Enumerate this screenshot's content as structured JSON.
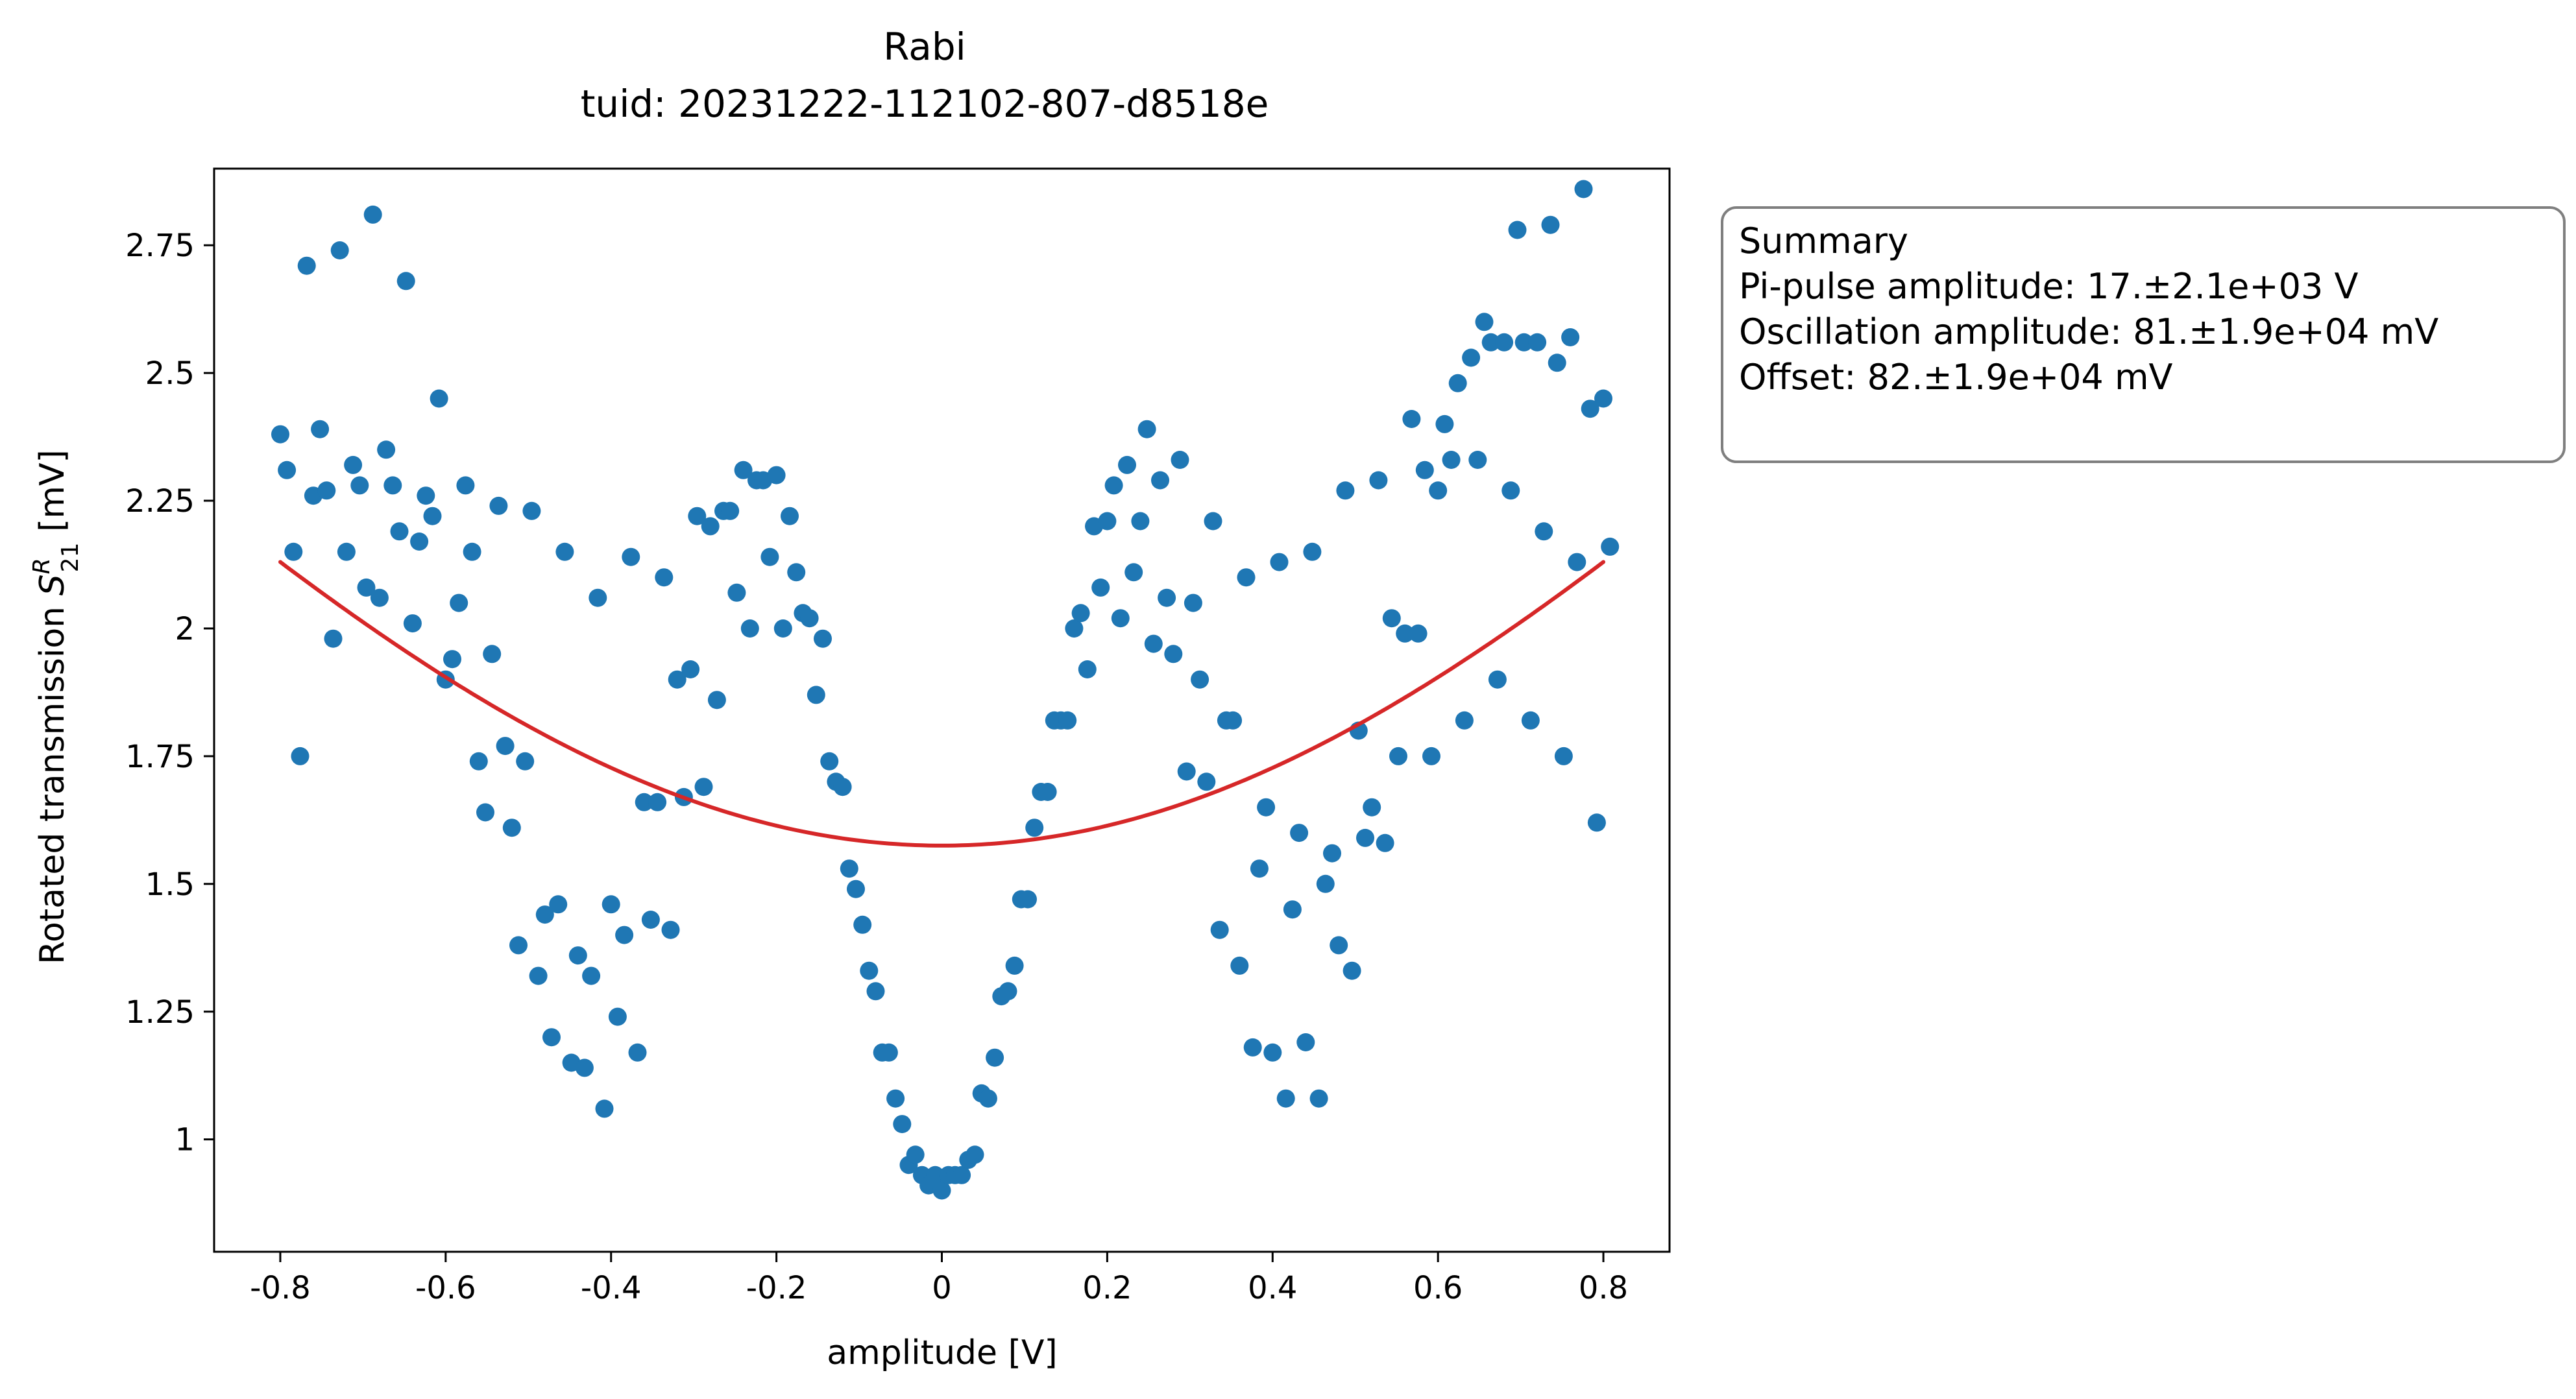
{
  "chart_data": {
    "type": "scatter",
    "title": "Rabi",
    "subtitle": "tuid: 20231222-112102-807-d8518e",
    "xlabel": "amplitude [V]",
    "ylabel_main": "Rotated transmission ",
    "ylabel_symbol": "S",
    "ylabel_sup": "R",
    "ylabel_sub": "21",
    "ylabel_unit": " [mV]",
    "xlim": [
      -0.88,
      0.88
    ],
    "ylim": [
      0.78,
      2.9
    ],
    "x_ticks": [
      -0.8,
      -0.6,
      -0.4,
      -0.2,
      0,
      0.2,
      0.4,
      0.6,
      0.8
    ],
    "x_tick_labels": [
      "-0.8",
      "-0.6",
      "-0.4",
      "-0.2",
      "0",
      "0.2",
      "0.4",
      "0.6",
      "0.8"
    ],
    "y_ticks": [
      1,
      1.25,
      1.5,
      1.75,
      2,
      2.25,
      2.5,
      2.75
    ],
    "y_tick_labels": [
      "1",
      "1.25",
      "1.5",
      "1.75",
      "2",
      "2.25",
      "2.5",
      "2.75"
    ],
    "grid": false,
    "colors": {
      "points": "#1f77b4",
      "fit": "#d62728",
      "box_edge": "#7f7f7f"
    },
    "series": [
      {
        "type": "scatter",
        "points": [
          [
            -0.8,
            2.38
          ],
          [
            -0.792,
            2.31
          ],
          [
            -0.784,
            2.15
          ],
          [
            -0.776,
            1.75
          ],
          [
            -0.768,
            2.71
          ],
          [
            -0.76,
            2.26
          ],
          [
            -0.752,
            2.39
          ],
          [
            -0.744,
            2.27
          ],
          [
            -0.736,
            1.98
          ],
          [
            -0.728,
            2.74
          ],
          [
            -0.72,
            2.15
          ],
          [
            -0.712,
            2.32
          ],
          [
            -0.704,
            2.28
          ],
          [
            -0.696,
            2.08
          ],
          [
            -0.688,
            2.81
          ],
          [
            -0.68,
            2.06
          ],
          [
            -0.672,
            2.35
          ],
          [
            -0.664,
            2.28
          ],
          [
            -0.656,
            2.19
          ],
          [
            -0.648,
            2.68
          ],
          [
            -0.64,
            2.01
          ],
          [
            -0.632,
            2.17
          ],
          [
            -0.624,
            2.26
          ],
          [
            -0.616,
            2.22
          ],
          [
            -0.608,
            2.45
          ],
          [
            -0.6,
            1.9
          ],
          [
            -0.592,
            1.94
          ],
          [
            -0.584,
            2.05
          ],
          [
            -0.576,
            2.28
          ],
          [
            -0.568,
            2.15
          ],
          [
            -0.56,
            1.74
          ],
          [
            -0.552,
            1.64
          ],
          [
            -0.544,
            1.95
          ],
          [
            -0.536,
            2.24
          ],
          [
            -0.528,
            1.77
          ],
          [
            -0.52,
            1.61
          ],
          [
            -0.512,
            1.38
          ],
          [
            -0.504,
            1.74
          ],
          [
            -0.496,
            2.23
          ],
          [
            -0.488,
            1.32
          ],
          [
            -0.48,
            1.44
          ],
          [
            -0.472,
            1.2
          ],
          [
            -0.464,
            1.46
          ],
          [
            -0.456,
            2.15
          ],
          [
            -0.448,
            1.15
          ],
          [
            -0.44,
            1.36
          ],
          [
            -0.432,
            1.14
          ],
          [
            -0.424,
            1.32
          ],
          [
            -0.416,
            2.06
          ],
          [
            -0.408,
            1.06
          ],
          [
            -0.4,
            1.46
          ],
          [
            -0.392,
            1.24
          ],
          [
            -0.384,
            1.4
          ],
          [
            -0.376,
            2.14
          ],
          [
            -0.368,
            1.17
          ],
          [
            -0.36,
            1.66
          ],
          [
            -0.352,
            1.43
          ],
          [
            -0.344,
            1.66
          ],
          [
            -0.336,
            2.1
          ],
          [
            -0.328,
            1.41
          ],
          [
            -0.32,
            1.9
          ],
          [
            -0.312,
            1.67
          ],
          [
            -0.304,
            1.92
          ],
          [
            -0.296,
            2.22
          ],
          [
            -0.288,
            1.69
          ],
          [
            -0.28,
            2.2
          ],
          [
            -0.272,
            1.86
          ],
          [
            -0.264,
            2.23
          ],
          [
            -0.256,
            2.23
          ],
          [
            -0.248,
            2.07
          ],
          [
            -0.24,
            2.31
          ],
          [
            -0.232,
            2.0
          ],
          [
            -0.224,
            2.29
          ],
          [
            -0.216,
            2.29
          ],
          [
            -0.208,
            2.14
          ],
          [
            -0.2,
            2.3
          ],
          [
            -0.192,
            2.0
          ],
          [
            -0.184,
            2.22
          ],
          [
            -0.176,
            2.11
          ],
          [
            -0.168,
            2.03
          ],
          [
            -0.16,
            2.02
          ],
          [
            -0.152,
            1.87
          ],
          [
            -0.144,
            1.98
          ],
          [
            -0.136,
            1.74
          ],
          [
            -0.128,
            1.7
          ],
          [
            -0.12,
            1.69
          ],
          [
            -0.112,
            1.53
          ],
          [
            -0.104,
            1.49
          ],
          [
            -0.096,
            1.42
          ],
          [
            -0.088,
            1.33
          ],
          [
            -0.08,
            1.29
          ],
          [
            -0.072,
            1.17
          ],
          [
            -0.064,
            1.17
          ],
          [
            -0.056,
            1.08
          ],
          [
            -0.048,
            1.03
          ],
          [
            -0.04,
            0.95
          ],
          [
            -0.032,
            0.97
          ],
          [
            -0.024,
            0.93
          ],
          [
            -0.016,
            0.91
          ],
          [
            -0.008,
            0.93
          ],
          [
            0.0,
            0.9
          ],
          [
            0.008,
            0.93
          ],
          [
            0.016,
            0.93
          ],
          [
            0.024,
            0.93
          ],
          [
            0.032,
            0.96
          ],
          [
            0.04,
            0.97
          ],
          [
            0.048,
            1.09
          ],
          [
            0.056,
            1.08
          ],
          [
            0.064,
            1.16
          ],
          [
            0.072,
            1.28
          ],
          [
            0.08,
            1.29
          ],
          [
            0.088,
            1.34
          ],
          [
            0.096,
            1.47
          ],
          [
            0.104,
            1.47
          ],
          [
            0.112,
            1.61
          ],
          [
            0.12,
            1.68
          ],
          [
            0.128,
            1.68
          ],
          [
            0.136,
            1.82
          ],
          [
            0.144,
            1.82
          ],
          [
            0.152,
            1.82
          ],
          [
            0.16,
            2.0
          ],
          [
            0.168,
            2.03
          ],
          [
            0.176,
            1.92
          ],
          [
            0.184,
            2.2
          ],
          [
            0.192,
            2.08
          ],
          [
            0.2,
            2.21
          ],
          [
            0.208,
            2.28
          ],
          [
            0.216,
            2.02
          ],
          [
            0.224,
            2.32
          ],
          [
            0.232,
            2.11
          ],
          [
            0.24,
            2.21
          ],
          [
            0.248,
            2.39
          ],
          [
            0.256,
            1.97
          ],
          [
            0.264,
            2.29
          ],
          [
            0.272,
            2.06
          ],
          [
            0.28,
            1.95
          ],
          [
            0.288,
            2.33
          ],
          [
            0.296,
            1.72
          ],
          [
            0.304,
            2.05
          ],
          [
            0.312,
            1.9
          ],
          [
            0.32,
            1.7
          ],
          [
            0.328,
            2.21
          ],
          [
            0.336,
            1.41
          ],
          [
            0.344,
            1.82
          ],
          [
            0.352,
            1.82
          ],
          [
            0.36,
            1.34
          ],
          [
            0.368,
            2.1
          ],
          [
            0.376,
            1.18
          ],
          [
            0.384,
            1.53
          ],
          [
            0.392,
            1.65
          ],
          [
            0.4,
            1.17
          ],
          [
            0.408,
            2.13
          ],
          [
            0.416,
            1.08
          ],
          [
            0.424,
            1.45
          ],
          [
            0.432,
            1.6
          ],
          [
            0.44,
            1.19
          ],
          [
            0.448,
            2.15
          ],
          [
            0.456,
            1.08
          ],
          [
            0.464,
            1.5
          ],
          [
            0.472,
            1.56
          ],
          [
            0.48,
            1.38
          ],
          [
            0.488,
            2.27
          ],
          [
            0.496,
            1.33
          ],
          [
            0.504,
            1.8
          ],
          [
            0.512,
            1.59
          ],
          [
            0.52,
            1.65
          ],
          [
            0.528,
            2.29
          ],
          [
            0.536,
            1.58
          ],
          [
            0.544,
            2.02
          ],
          [
            0.552,
            1.75
          ],
          [
            0.56,
            1.99
          ],
          [
            0.568,
            2.41
          ],
          [
            0.576,
            1.99
          ],
          [
            0.584,
            2.31
          ],
          [
            0.592,
            1.75
          ],
          [
            0.6,
            2.27
          ],
          [
            0.608,
            2.4
          ],
          [
            0.616,
            2.33
          ],
          [
            0.624,
            2.48
          ],
          [
            0.632,
            1.82
          ],
          [
            0.64,
            2.53
          ],
          [
            0.648,
            2.33
          ],
          [
            0.656,
            2.6
          ],
          [
            0.664,
            2.56
          ],
          [
            0.672,
            1.9
          ],
          [
            0.68,
            2.56
          ],
          [
            0.688,
            2.27
          ],
          [
            0.696,
            2.78
          ],
          [
            0.704,
            2.56
          ],
          [
            0.712,
            1.82
          ],
          [
            0.72,
            2.56
          ],
          [
            0.728,
            2.19
          ],
          [
            0.736,
            2.79
          ],
          [
            0.744,
            2.52
          ],
          [
            0.752,
            1.75
          ],
          [
            0.76,
            2.57
          ],
          [
            0.768,
            2.13
          ],
          [
            0.776,
            2.86
          ],
          [
            0.784,
            2.43
          ],
          [
            0.792,
            1.62
          ],
          [
            0.8,
            2.45
          ],
          [
            0.808,
            2.16
          ]
        ]
      },
      {
        "type": "line",
        "fit_model": {
          "offset": 1.575,
          "amplitude": 0.86,
          "period_v": 4.16
        }
      }
    ],
    "legend": {
      "placement": "right-outside-top",
      "title": "Summary",
      "lines": [
        "Pi-pulse amplitude: 17.±2.1e+03 V",
        "Oscillation amplitude: 81.±1.9e+04 mV",
        "Offset: 82.±1.9e+04 mV"
      ]
    }
  }
}
